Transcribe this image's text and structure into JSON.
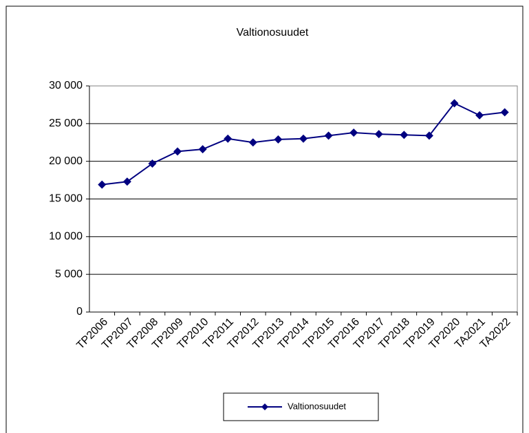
{
  "chart_data": {
    "type": "line",
    "title": "Valtionosuudet",
    "categories": [
      "TP2006",
      "TP2007",
      "TP2008",
      "TP2009",
      "TP2010",
      "TP2011",
      "TP2012",
      "TP2013",
      "TP2014",
      "TP2015",
      "TP2016",
      "TP2017",
      "TP2018",
      "TP2019",
      "TP2020",
      "TA2021",
      "TA2022"
    ],
    "series": [
      {
        "name": "Valtionosuudet",
        "color": "#000080",
        "values": [
          16900,
          17300,
          19700,
          21300,
          21600,
          23000,
          22500,
          22900,
          23000,
          23400,
          23800,
          23600,
          23500,
          23400,
          27700,
          26100,
          26500
        ]
      }
    ],
    "ylim": [
      0,
      30000
    ],
    "yticks": [
      0,
      {
        "value": 5000,
        "label": "5 000"
      },
      {
        "value": 10000,
        "label": "10 000"
      },
      {
        "value": 15000,
        "label": "15 000"
      },
      {
        "value": 20000,
        "label": "20 000"
      },
      {
        "value": 25000,
        "label": "25 000"
      },
      {
        "value": 30000,
        "label": "30 000"
      }
    ],
    "grid": true,
    "legend": "bottom"
  }
}
